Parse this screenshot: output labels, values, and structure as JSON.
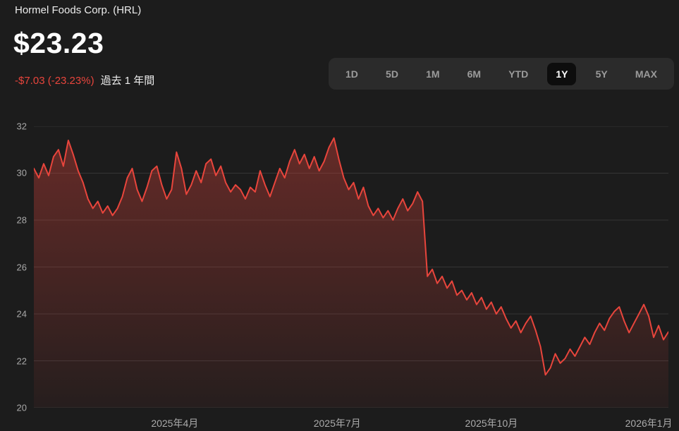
{
  "header": {
    "title": "Hormel Foods Corp. (HRL)",
    "price": "$23.23",
    "change": "-$7.03 (-23.23%)",
    "period_label": "過去 1 年間"
  },
  "range_selector": {
    "options": [
      {
        "label": "1D",
        "selected": false
      },
      {
        "label": "5D",
        "selected": false
      },
      {
        "label": "1M",
        "selected": false
      },
      {
        "label": "6M",
        "selected": false
      },
      {
        "label": "YTD",
        "selected": false
      },
      {
        "label": "1Y",
        "selected": true
      },
      {
        "label": "5Y",
        "selected": false
      },
      {
        "label": "MAX",
        "selected": false
      }
    ]
  },
  "colors": {
    "background": "#1c1c1c",
    "accent_red": "#e8453c",
    "grid": "#353535",
    "axis_text": "#a8a8a8",
    "selector_bg": "#2b2b2b",
    "selected_pill": "#0d0d0d"
  },
  "chart_data": {
    "type": "line",
    "title": "Hormel Foods Corp. (HRL) price, past 1 year",
    "ylim": [
      20,
      32
    ],
    "yticks": [
      32,
      30,
      28,
      26,
      24,
      22,
      20
    ],
    "xticks": [
      {
        "label": "2025年4月",
        "pos": 0.222
      },
      {
        "label": "2025年7月",
        "pos": 0.478
      },
      {
        "label": "2025年10月",
        "pos": 0.721
      },
      {
        "label": "2026年1月",
        "pos": 0.969
      }
    ],
    "values": [
      30.2,
      29.8,
      30.4,
      29.9,
      30.7,
      31.0,
      30.3,
      31.4,
      30.8,
      30.1,
      29.6,
      28.9,
      28.5,
      28.8,
      28.3,
      28.6,
      28.2,
      28.5,
      29.0,
      29.8,
      30.2,
      29.3,
      28.8,
      29.4,
      30.1,
      30.3,
      29.5,
      28.9,
      29.3,
      30.9,
      30.2,
      29.1,
      29.5,
      30.1,
      29.6,
      30.4,
      30.6,
      29.9,
      30.3,
      29.6,
      29.2,
      29.5,
      29.3,
      28.9,
      29.4,
      29.2,
      30.1,
      29.5,
      29.0,
      29.6,
      30.2,
      29.8,
      30.5,
      31.0,
      30.4,
      30.8,
      30.2,
      30.7,
      30.1,
      30.5,
      31.1,
      31.5,
      30.6,
      29.8,
      29.3,
      29.6,
      28.9,
      29.4,
      28.6,
      28.2,
      28.5,
      28.1,
      28.4,
      28.0,
      28.5,
      28.9,
      28.4,
      28.7,
      29.2,
      28.8,
      25.6,
      25.9,
      25.3,
      25.6,
      25.1,
      25.4,
      24.8,
      25.0,
      24.6,
      24.9,
      24.4,
      24.7,
      24.2,
      24.5,
      24.0,
      24.3,
      23.8,
      23.4,
      23.7,
      23.2,
      23.6,
      23.9,
      23.3,
      22.6,
      21.4,
      21.7,
      22.3,
      21.9,
      22.1,
      22.5,
      22.2,
      22.6,
      23.0,
      22.7,
      23.2,
      23.6,
      23.3,
      23.8,
      24.1,
      24.3,
      23.7,
      23.2,
      23.6,
      24.0,
      24.4,
      23.9,
      23.0,
      23.5,
      22.9,
      23.23
    ]
  }
}
